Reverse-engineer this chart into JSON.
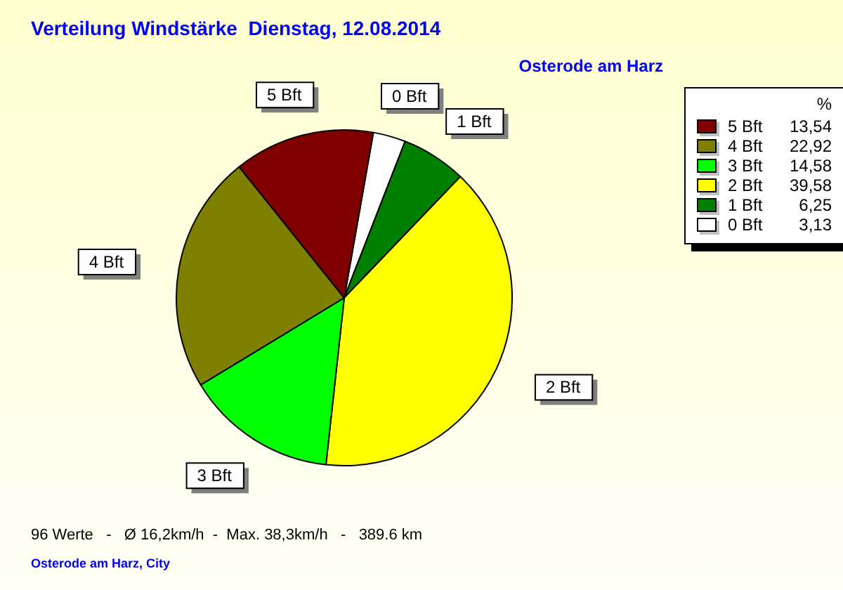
{
  "chart_data": {
    "type": "pie",
    "title": "Verteilung Windstärke  Dienstag, 12.08.2014",
    "subtitle": "Osterode am Harz",
    "legend_title": "%",
    "legend": "top right",
    "categories": [
      "5 Bft",
      "4 Bft",
      "3 Bft",
      "2 Bft",
      "1 Bft",
      "0 Bft"
    ],
    "values": [
      13.54,
      22.92,
      14.58,
      39.58,
      6.25,
      3.13
    ],
    "value_labels": [
      "13,54",
      "22,92",
      "14,58",
      "39,58",
      "6,25",
      "3,13"
    ],
    "colors": [
      "#800000",
      "#808000",
      "#00ff00",
      "#ffff00",
      "#008000",
      "#ffffff"
    ],
    "annotations": [
      "96 Werte   -   Ø 16,2km/h  -  Max. 38,3km/h   -   389.6 km",
      "Osterode am Harz, City"
    ]
  }
}
